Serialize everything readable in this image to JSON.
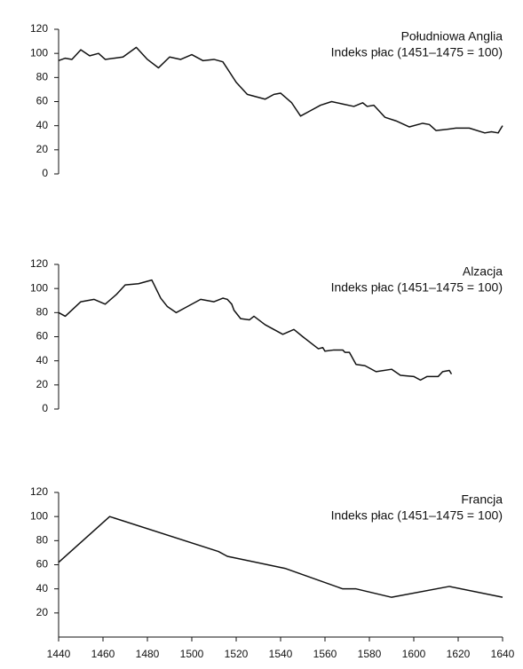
{
  "chart_data": [
    {
      "type": "line",
      "title": "Południowa Anglia",
      "subtitle": "Indeks płac (1451–1475 = 100)",
      "x": [
        1440,
        1443,
        1446,
        1450,
        1454,
        1458,
        1461,
        1465,
        1469,
        1475,
        1480,
        1485,
        1490,
        1495,
        1500,
        1505,
        1510,
        1514,
        1520,
        1525,
        1533,
        1537,
        1540,
        1545,
        1549,
        1553,
        1558,
        1563,
        1568,
        1573,
        1577,
        1579,
        1582,
        1587,
        1592,
        1598,
        1604,
        1607,
        1610,
        1615,
        1619,
        1625,
        1632,
        1635,
        1638,
        1640
      ],
      "values": [
        94,
        96,
        95,
        103,
        98,
        100,
        95,
        96,
        97,
        105,
        95,
        88,
        97,
        95,
        99,
        94,
        95,
        93,
        76,
        66,
        62,
        66,
        67,
        59,
        48,
        52,
        57,
        60,
        58,
        56,
        59,
        56,
        57,
        47,
        44,
        39,
        42,
        41,
        36,
        37,
        38,
        38,
        34,
        35,
        34,
        40
      ],
      "color": "#111111",
      "xlim": [
        1440,
        1640
      ],
      "ylim": [
        0,
        120
      ],
      "yticks": [
        0,
        20,
        40,
        60,
        80,
        100,
        120
      ]
    },
    {
      "type": "line",
      "title": "Alzacja",
      "subtitle": "Indeks płac (1451–1475 = 100)",
      "x": [
        1440,
        1443,
        1450,
        1456,
        1461,
        1466,
        1470,
        1476,
        1482,
        1486,
        1489,
        1493,
        1497,
        1504,
        1510,
        1514,
        1516,
        1518,
        1519,
        1522,
        1526,
        1528,
        1533,
        1541,
        1546,
        1550,
        1557,
        1559,
        1560,
        1564,
        1568,
        1569,
        1571,
        1574,
        1578,
        1583,
        1590,
        1594,
        1600,
        1603,
        1606,
        1611,
        1613,
        1616,
        1617
      ],
      "values": [
        80,
        77,
        89,
        91,
        87,
        95,
        103,
        104,
        107,
        92,
        85,
        80,
        84,
        91,
        89,
        92,
        91,
        87,
        82,
        75,
        74,
        77,
        70,
        62,
        66,
        60,
        50,
        51,
        48,
        49,
        49,
        47,
        47,
        37,
        36,
        31,
        33,
        28,
        27,
        24,
        27,
        27,
        31,
        32,
        29
      ],
      "color": "#111111",
      "xlim": [
        1440,
        1640
      ],
      "ylim": [
        0,
        120
      ],
      "yticks": [
        0,
        20,
        40,
        60,
        80,
        100,
        120
      ]
    },
    {
      "type": "line",
      "title": "Francja",
      "subtitle": "Indeks płac (1451–1475 = 100)",
      "x": [
        1440,
        1463,
        1512,
        1516,
        1542,
        1568,
        1574,
        1590,
        1616,
        1640
      ],
      "values": [
        62,
        100,
        71,
        67,
        57,
        40,
        40,
        33,
        42,
        33
      ],
      "color": "#111111",
      "xlim": [
        1440,
        1640
      ],
      "ylim": [
        0,
        120
      ],
      "yticks": [
        20,
        40,
        60,
        80,
        100,
        120
      ],
      "xticks": [
        1440,
        1460,
        1480,
        1500,
        1520,
        1540,
        1560,
        1580,
        1600,
        1620,
        1640
      ]
    }
  ]
}
